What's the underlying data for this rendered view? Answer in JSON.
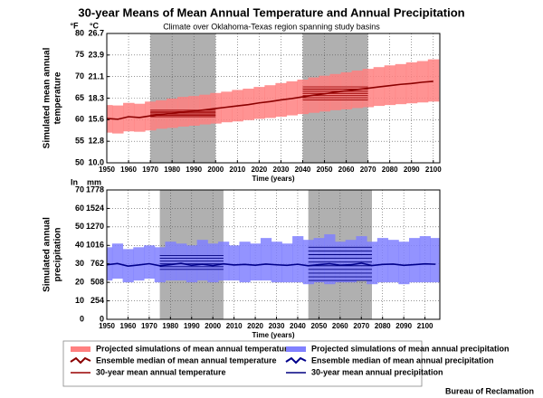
{
  "title": "30-year Means of Mean Annual Temperature and Annual Precipitation",
  "footer": "Bureau of Reclamation",
  "chart_data": [
    {
      "type": "line",
      "subtitle": "Climate over Oklahoma-Texas region spanning study basins",
      "xlabel": "Time (years)",
      "ylabel": [
        "Simulated mean annual",
        "temperature"
      ],
      "y_unit": "°F",
      "y2_unit": "°C",
      "grid": true,
      "xlim": [
        1950,
        2103
      ],
      "xticks": [
        1950,
        1960,
        1970,
        1980,
        1990,
        2000,
        2010,
        2020,
        2030,
        2040,
        2050,
        2060,
        2070,
        2080,
        2090,
        2100
      ],
      "ylim": [
        50,
        80
      ],
      "yticks": [
        50,
        55,
        60,
        65,
        70,
        75,
        80
      ],
      "y2lim": [
        10,
        26.7
      ],
      "y2ticks": [
        {
          "value": 10,
          "label": "10.0"
        },
        12.8,
        15.6,
        18.3,
        21.1,
        23.9,
        26.7
      ],
      "x": [
        1950,
        1955,
        1960,
        1965,
        1970,
        1975,
        1980,
        1985,
        1990,
        1995,
        2000,
        2005,
        2010,
        2015,
        2020,
        2025,
        2030,
        2035,
        2040,
        2045,
        2050,
        2055,
        2060,
        2065,
        2070,
        2075,
        2080,
        2085,
        2090,
        2095,
        2100
      ],
      "series": [
        {
          "name": "Projected simulations of mean annual temperature",
          "color": "#ff8080",
          "low": [
            57.0,
            56.8,
            57.3,
            57.2,
            57.5,
            57.9,
            58.1,
            58.4,
            58.6,
            58.9,
            59.1,
            59.4,
            59.6,
            59.9,
            60.2,
            60.4,
            60.7,
            61.0,
            61.3,
            61.6,
            61.9,
            62.2,
            62.4,
            62.7,
            62.9,
            63.2,
            63.4,
            63.6,
            63.8,
            64.0,
            64.2
          ],
          "high": [
            63.4,
            63.3,
            63.9,
            63.7,
            64.2,
            64.5,
            64.9,
            65.3,
            65.5,
            65.8,
            66.2,
            66.5,
            66.9,
            67.2,
            67.6,
            68.0,
            68.5,
            68.9,
            69.3,
            69.8,
            70.2,
            70.6,
            71.0,
            71.4,
            71.8,
            72.2,
            72.6,
            72.9,
            73.3,
            73.6,
            74.0
          ]
        },
        {
          "name": "Ensemble median of mean annual temperature",
          "color": "#8b0000",
          "values": [
            60.3,
            60.1,
            60.7,
            60.5,
            60.9,
            61.2,
            61.5,
            61.8,
            62.0,
            62.3,
            62.6,
            62.9,
            63.2,
            63.5,
            63.9,
            64.2,
            64.6,
            64.9,
            65.3,
            65.7,
            66.0,
            66.4,
            66.7,
            67.0,
            67.3,
            67.6,
            67.9,
            68.2,
            68.4,
            68.7,
            68.9
          ]
        },
        {
          "name": "30-year mean annual temperature",
          "color": "#990000",
          "periods": [
            {
              "start": 1970,
              "end": 2000,
              "values": [
                60.7,
                61.0,
                61.3,
                61.6,
                61.9,
                62.2
              ]
            },
            {
              "start": 2040,
              "end": 2070,
              "values": [
                64.6,
                65.1,
                65.6,
                66.1,
                66.6,
                67.1,
                67.6
              ]
            }
          ]
        }
      ]
    },
    {
      "type": "line",
      "xlabel": "Time (years)",
      "ylabel": [
        "Simulated annual",
        "precipitation"
      ],
      "y_unit": "In",
      "y2_unit": "mm",
      "grid": true,
      "xlim": [
        1950,
        2107
      ],
      "xticks": [
        1950,
        1960,
        1970,
        1980,
        1990,
        2000,
        2010,
        2020,
        2030,
        2040,
        2050,
        2060,
        2070,
        2080,
        2090,
        2100
      ],
      "ylim": [
        0,
        70
      ],
      "yticks": [
        0,
        10,
        20,
        30,
        40,
        50,
        60,
        70
      ],
      "y2lim": [
        0,
        1778
      ],
      "y2ticks": [
        0,
        254,
        508,
        762,
        1016,
        1270,
        1524,
        1778
      ],
      "x": [
        1950,
        1955,
        1960,
        1965,
        1970,
        1975,
        1980,
        1985,
        1990,
        1995,
        2000,
        2005,
        2010,
        2015,
        2020,
        2025,
        2030,
        2035,
        2040,
        2045,
        2050,
        2055,
        2060,
        2065,
        2070,
        2075,
        2080,
        2085,
        2090,
        2095,
        2100,
        2105
      ],
      "series": [
        {
          "name": "Projected simulations of mean annual precipitation",
          "color": "#8080ff",
          "low": [
            21,
            22,
            20,
            21,
            22,
            20,
            21,
            21,
            20,
            21,
            20,
            21,
            21,
            20,
            21,
            21,
            20,
            20,
            20,
            19,
            20,
            19,
            20,
            20,
            21,
            19,
            20,
            20,
            19,
            20,
            20,
            20
          ],
          "high": [
            39,
            41,
            38,
            39,
            40,
            39,
            42,
            41,
            40,
            43,
            41,
            42,
            40,
            42,
            41,
            44,
            42,
            41,
            45,
            43,
            44,
            46,
            42,
            43,
            45,
            42,
            44,
            43,
            42,
            44,
            45,
            44
          ]
        },
        {
          "name": "Ensemble median of mean annual precipitation",
          "color": "#00008b",
          "values": [
            29.5,
            30.2,
            28.8,
            29.4,
            30.1,
            29.0,
            29.6,
            30.3,
            29.2,
            29.8,
            29.1,
            30.0,
            29.4,
            29.7,
            29.3,
            29.9,
            29.5,
            29.2,
            29.8,
            29.0,
            29.6,
            30.1,
            29.3,
            29.5,
            30.4,
            29.1,
            29.7,
            29.9,
            29.2,
            29.6,
            30.0,
            29.8
          ]
        },
        {
          "name": "30-year mean annual precipitation",
          "color": "#000080",
          "periods": [
            {
              "start": 1975,
              "end": 2005,
              "values": [
                27,
                28.5,
                30,
                31.5,
                33,
                34.5
              ]
            },
            {
              "start": 2045,
              "end": 2075,
              "values": [
                21,
                23,
                25,
                27,
                29,
                31,
                33,
                35,
                37,
                39
              ]
            }
          ]
        }
      ]
    }
  ]
}
